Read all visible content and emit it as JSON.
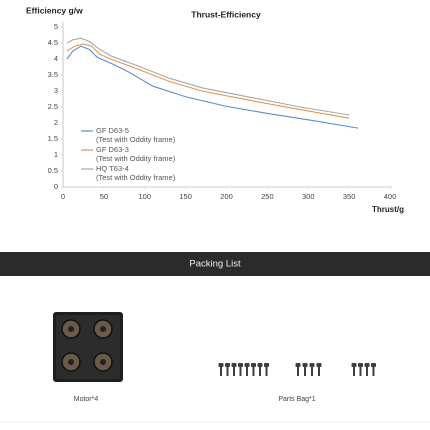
{
  "chart_data": {
    "type": "line",
    "title": "Thrust-Efficiency",
    "y_label": "Efficiency g/w",
    "x_label": "Thrust/g",
    "xlim": [
      0,
      400
    ],
    "xticks": [
      0,
      50,
      100,
      150,
      200,
      250,
      300,
      350,
      400
    ],
    "ylim": [
      0,
      5
    ],
    "yticks": [
      0,
      0.5,
      1,
      1.5,
      2,
      2.5,
      3,
      3.5,
      4,
      4.5,
      5
    ],
    "grid": false,
    "legend": "lower-left",
    "series": [
      {
        "name": "GF D63-5",
        "note": "(Test with Oddity frame)",
        "color": "#5b8fc7",
        "x": [
          5,
          12,
          22,
          32,
          42,
          60,
          80,
          110,
          150,
          200,
          250,
          300,
          361
        ],
        "values": [
          4.0,
          4.25,
          4.4,
          4.3,
          4.05,
          3.85,
          3.6,
          3.15,
          2.82,
          2.52,
          2.3,
          2.1,
          1.84
        ]
      },
      {
        "name": "GF D63-3",
        "note": "(Test with Oddity frame)",
        "color": "#e39552",
        "x": [
          5,
          14,
          25,
          35,
          45,
          60,
          90,
          130,
          170,
          230,
          290,
          350
        ],
        "values": [
          4.25,
          4.4,
          4.47,
          4.4,
          4.15,
          3.98,
          3.7,
          3.3,
          3.0,
          2.7,
          2.42,
          2.15
        ]
      },
      {
        "name": "HQ T63-4",
        "note": "(Test with Oddity frame)",
        "color": "#a8a8a8",
        "x": [
          5,
          12,
          22,
          32,
          45,
          60,
          90,
          130,
          170,
          230,
          290,
          350
        ],
        "values": [
          4.5,
          4.6,
          4.65,
          4.55,
          4.3,
          4.08,
          3.8,
          3.4,
          3.1,
          2.8,
          2.5,
          2.25
        ]
      }
    ]
  },
  "packing_list": {
    "title": "Packing List",
    "items": [
      "Motor*4",
      "Parts Bag*1"
    ]
  }
}
